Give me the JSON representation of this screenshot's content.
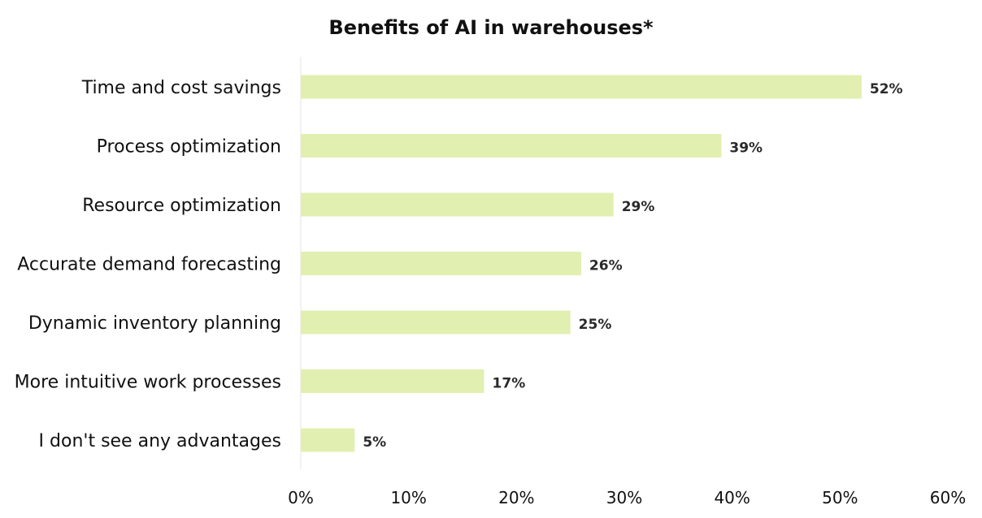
{
  "chart_data": {
    "type": "bar",
    "orientation": "horizontal",
    "title": "Benefits of AI in warehouses*",
    "xlabel": "",
    "ylabel": "",
    "categories": [
      "Time and cost savings",
      "Process optimization",
      "Resource optimization",
      "Accurate demand forecasting",
      "Dynamic inventory planning",
      "More intuitive work processes",
      "I don't see any advantages"
    ],
    "values": [
      52,
      39,
      29,
      26,
      25,
      17,
      5
    ],
    "data_labels": [
      "52%",
      "39%",
      "29%",
      "26%",
      "25%",
      "17%",
      "5%"
    ],
    "xlim": [
      0,
      60
    ],
    "x_ticks": [
      0,
      10,
      20,
      30,
      40,
      50,
      60
    ],
    "x_tick_labels": [
      "0%",
      "10%",
      "20%",
      "30%",
      "40%",
      "50%",
      "60%"
    ],
    "grid": false,
    "legend": "none",
    "bar_color": "#e1efb0"
  }
}
